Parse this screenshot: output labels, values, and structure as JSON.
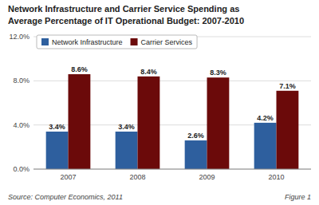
{
  "chart_data": {
    "type": "bar",
    "title": "Network Infrastructure and Carrier Service Spending as",
    "subtitle": "Average Percentage of IT Operational Budget: 2007-2010",
    "annotations": [
      "Source: Computer Economics, 2011",
      "Figure 1"
    ],
    "categories": [
      "2007",
      "2008",
      "2009",
      "2010"
    ],
    "series": [
      {
        "name": "Network Infrastructure",
        "color": "#2E5F9E",
        "values": [
          3.4,
          3.4,
          2.6,
          4.2
        ],
        "value_labels": [
          "3.4%",
          "3.4%",
          "2.6%",
          "4.2%"
        ]
      },
      {
        "name": "Carrier Services",
        "color": "#6B0A0A",
        "values": [
          8.6,
          8.4,
          8.3,
          7.1
        ],
        "value_labels": [
          "8.6%",
          "8.4%",
          "8.3%",
          "7.1%"
        ]
      }
    ],
    "ylim": [
      0,
      12.0
    ],
    "yticks": [
      {
        "value": 0.0,
        "label": "0.0%"
      },
      {
        "value": 4.0,
        "label": "4.0%"
      },
      {
        "value": 8.0,
        "label": "8.0%"
      },
      {
        "value": 12.0,
        "label": "12.0%"
      }
    ],
    "grid": true,
    "legend": "upper left",
    "data_labels": true
  }
}
